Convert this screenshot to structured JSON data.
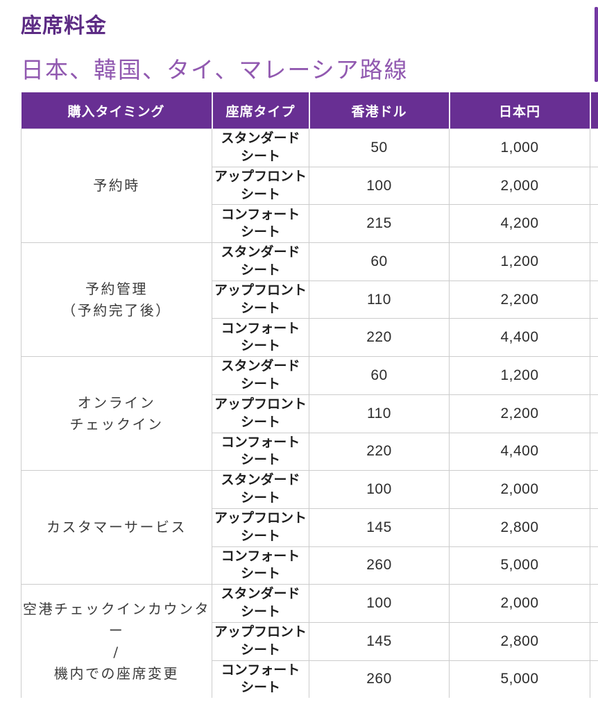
{
  "page": {
    "title": "座席料金",
    "subtitle": "日本、韓国、タイ、マレーシア路線"
  },
  "colors": {
    "header_bg": "#682F93",
    "title_purple": "#5C2B84",
    "subtitle_purple": "#9159B0",
    "scrollbar_purple": "#7439A3",
    "border_gray": "#CCCCCC",
    "body_text": "#2D2D2D"
  },
  "table": {
    "headers": [
      "購入タイミング",
      "座席タイプ",
      "香港ドル",
      "日本円"
    ],
    "groups": [
      {
        "timing": "予約時",
        "rows": [
          {
            "seat": "スタンダード\nシート",
            "hkd": "50",
            "jpy": "1,000"
          },
          {
            "seat": "アップフロント\nシート",
            "hkd": "100",
            "jpy": "2,000"
          },
          {
            "seat": "コンフォート\nシート",
            "hkd": "215",
            "jpy": "4,200"
          }
        ]
      },
      {
        "timing": "予約管理\n（予約完了後）",
        "rows": [
          {
            "seat": "スタンダード\nシート",
            "hkd": "60",
            "jpy": "1,200"
          },
          {
            "seat": "アップフロント\nシート",
            "hkd": "110",
            "jpy": "2,200"
          },
          {
            "seat": "コンフォート\nシート",
            "hkd": "220",
            "jpy": "4,400"
          }
        ]
      },
      {
        "timing": "オンライン\nチェックイン",
        "rows": [
          {
            "seat": "スタンダード\nシート",
            "hkd": "60",
            "jpy": "1,200"
          },
          {
            "seat": "アップフロント\nシート",
            "hkd": "110",
            "jpy": "2,200"
          },
          {
            "seat": "コンフォート\nシート",
            "hkd": "220",
            "jpy": "4,400"
          }
        ]
      },
      {
        "timing": "カスタマーサービス",
        "rows": [
          {
            "seat": "スタンダード\nシート",
            "hkd": "100",
            "jpy": "2,000"
          },
          {
            "seat": "アップフロント\nシート",
            "hkd": "145",
            "jpy": "2,800"
          },
          {
            "seat": "コンフォート\nシート",
            "hkd": "260",
            "jpy": "5,000"
          }
        ]
      },
      {
        "timing": "空港チェックインカウンター\n/\n機内での座席変更",
        "rows": [
          {
            "seat": "スタンダード\nシート",
            "hkd": "100",
            "jpy": "2,000"
          },
          {
            "seat": "アップフロント\nシート",
            "hkd": "145",
            "jpy": "2,800"
          },
          {
            "seat": "コンフォート\nシート",
            "hkd": "260",
            "jpy": "5,000"
          }
        ]
      }
    ]
  }
}
